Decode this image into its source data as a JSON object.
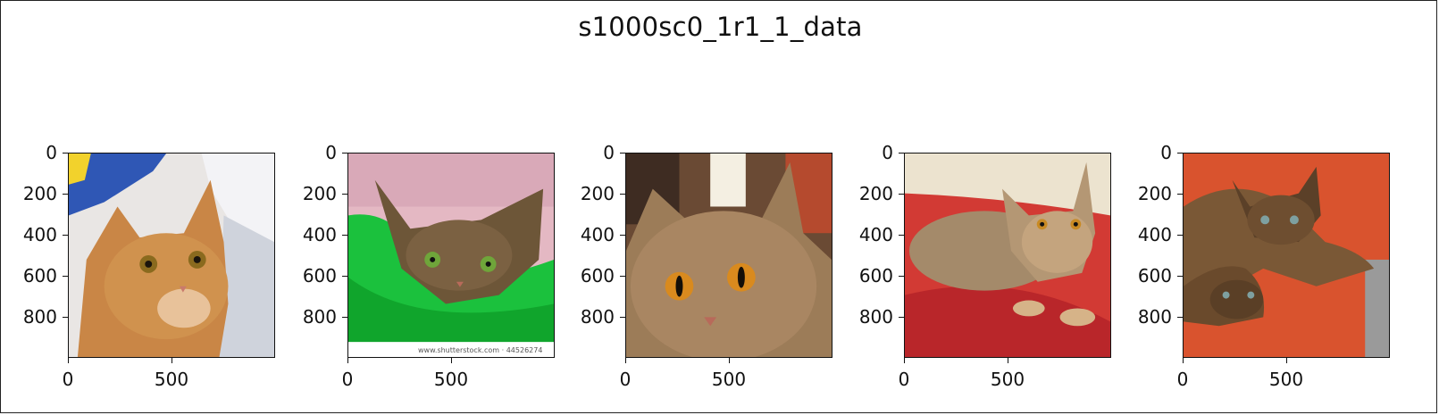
{
  "figure": {
    "title": "s1000sc0_1r1_1_data"
  },
  "axes": {
    "y_ticks": [
      "0",
      "200",
      "400",
      "600",
      "800"
    ],
    "x_ticks": [
      "0",
      "500"
    ]
  },
  "panels": [
    {
      "subject": "orange tabby cat lying under a blue cloth",
      "icon": "cat-photo-1"
    },
    {
      "subject": "abyssinian cat resting on a green blanket, with stock photo watermark",
      "icon": "cat-photo-2",
      "watermark": "www.shutterstock.com · 44526274"
    },
    {
      "subject": "close-up face of a ticked tabby cat with amber eyes",
      "icon": "cat-photo-3"
    },
    {
      "subject": "abyssinian cat lying on a red cushion",
      "icon": "cat-photo-4"
    },
    {
      "subject": "two abyssinian kittens on an orange cushion",
      "icon": "cat-photo-5"
    }
  ]
}
